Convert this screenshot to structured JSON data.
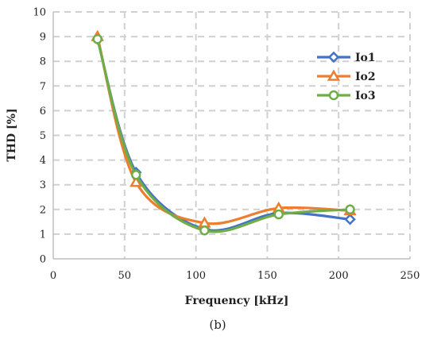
{
  "chart_data": {
    "type": "line",
    "xlabel": "Frequency [kHz]",
    "ylabel": "THD [%]",
    "xlim": [
      0,
      250
    ],
    "ylim": [
      0,
      10
    ],
    "xticks": [
      "0",
      "50",
      "100",
      "150",
      "200",
      "250"
    ],
    "yticks": [
      "0",
      "1",
      "2",
      "3",
      "4",
      "5",
      "6",
      "7",
      "8",
      "9",
      "10"
    ],
    "grid": true,
    "legend_position": "top-right",
    "caption": "(b)",
    "series": [
      {
        "name": "Io1",
        "color": "#4472c4",
        "marker": "diamond",
        "x": [
          31,
          58,
          106,
          158,
          208
        ],
        "y": [
          8.9,
          3.5,
          1.2,
          1.85,
          1.6
        ]
      },
      {
        "name": "Io2",
        "color": "#ed7d31",
        "marker": "triangle",
        "x": [
          31,
          58,
          106,
          158,
          208
        ],
        "y": [
          9.0,
          3.1,
          1.45,
          2.05,
          1.95
        ]
      },
      {
        "name": "Io3",
        "color": "#70ad47",
        "marker": "circle",
        "x": [
          31,
          58,
          106,
          158,
          208
        ],
        "y": [
          8.9,
          3.4,
          1.15,
          1.8,
          2.0
        ]
      }
    ]
  }
}
